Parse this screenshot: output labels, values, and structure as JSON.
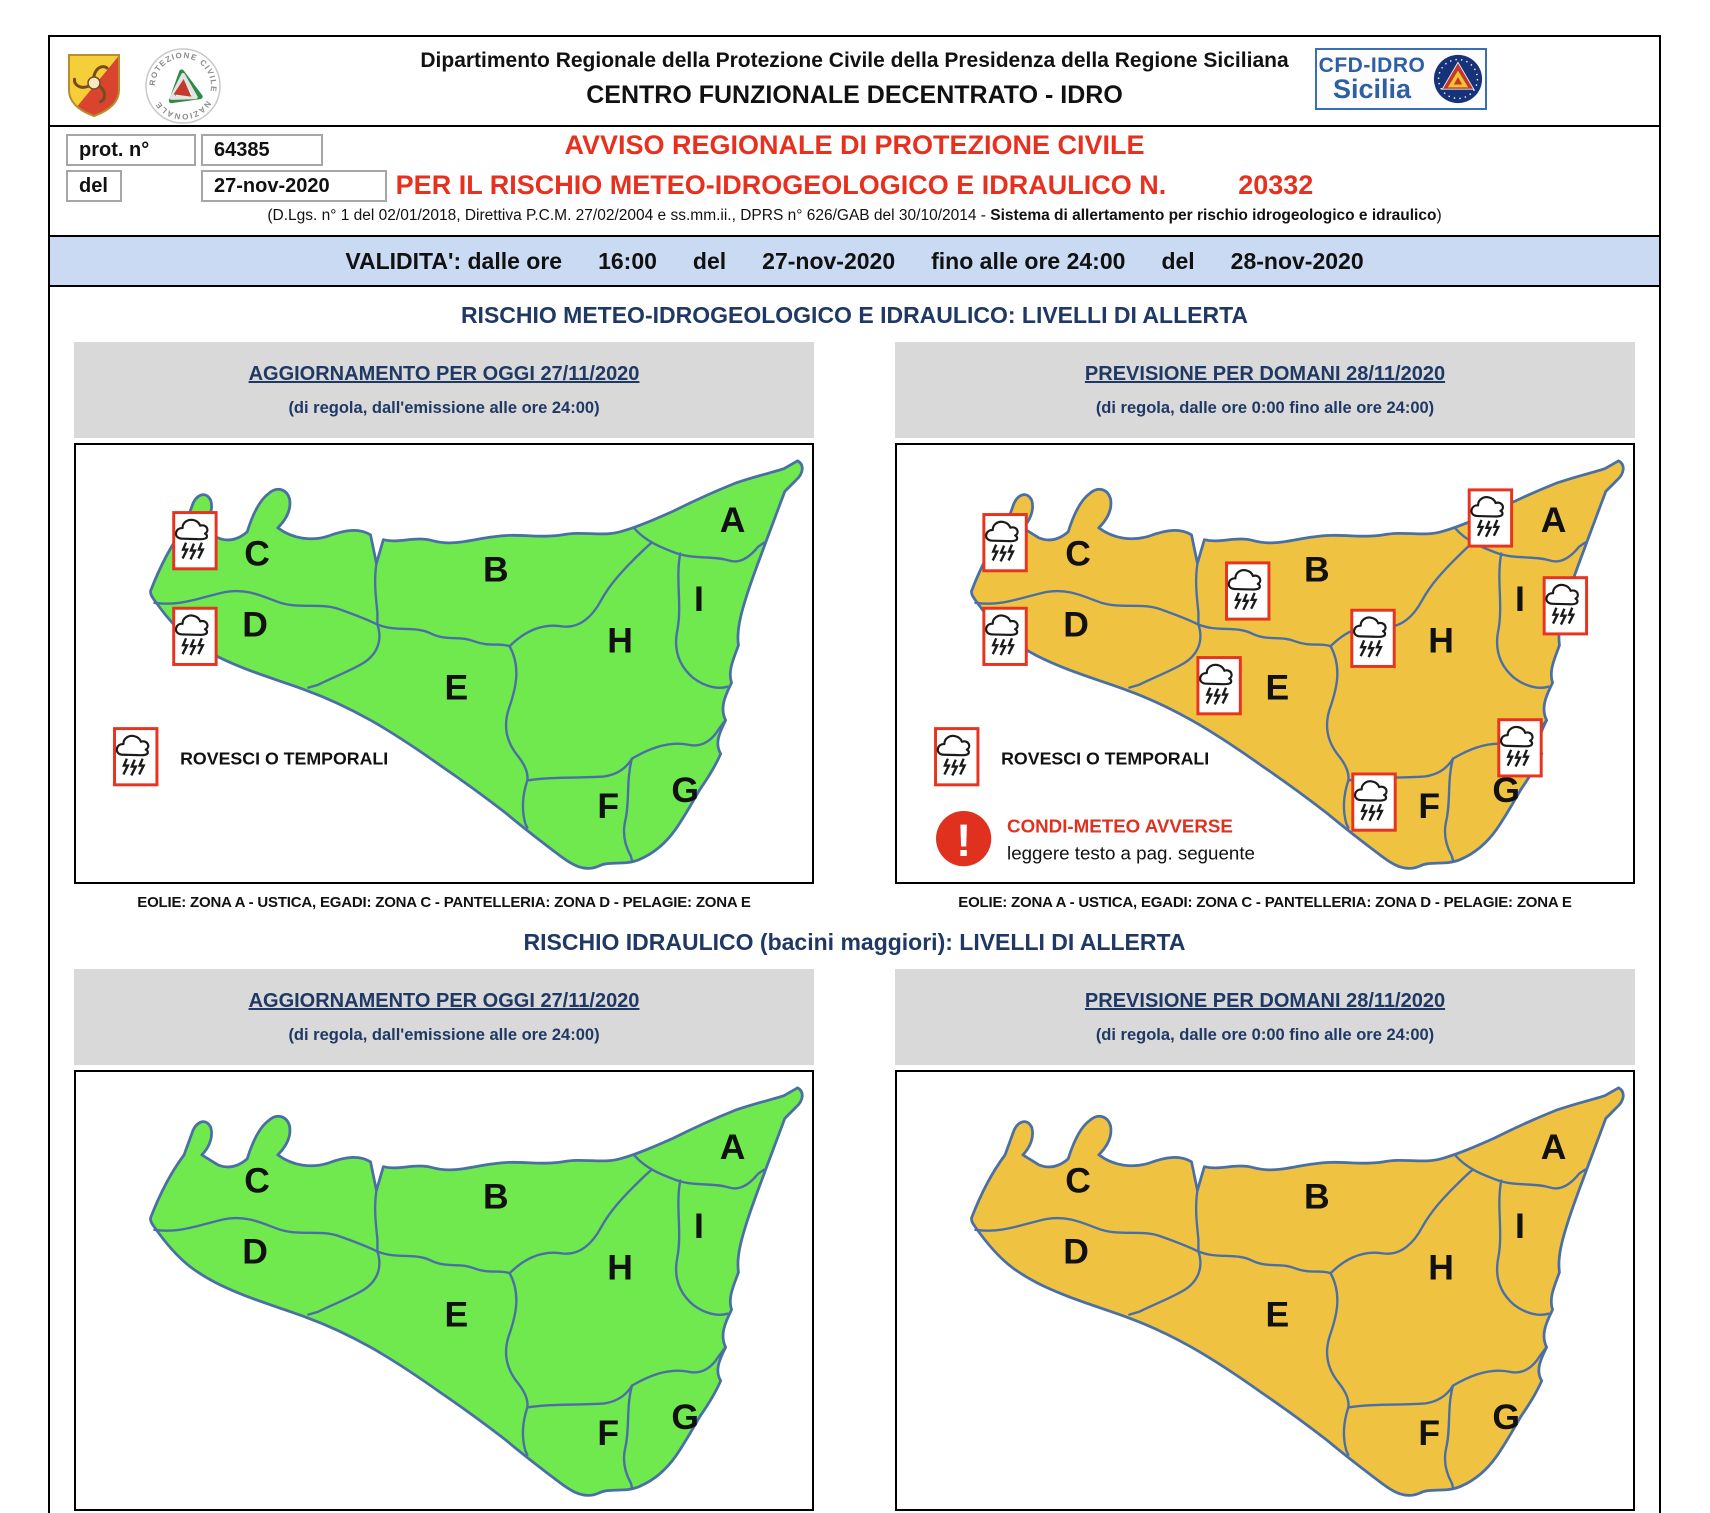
{
  "header": {
    "department_line": "Dipartimento Regionale della Protezione Civile della Presidenza della Regione Siciliana",
    "center_line": "CENTRO FUNZIONALE DECENTRATO - IDRO",
    "cfd_logo": {
      "line1": "CFD-IDRO",
      "line2": "Sicilia"
    },
    "pc_logo": {
      "arc_top": "PROTEZIONE CIVILE",
      "arc_bottom": "NAZIONALE"
    }
  },
  "protocol": {
    "label": "prot. n°",
    "number": "64385",
    "date_label": "del",
    "date": "27-nov-2020"
  },
  "title": {
    "line1": "AVVISO REGIONALE DI PROTEZIONE CIVILE",
    "line2": "PER IL RISCHIO METEO-IDROGEOLOGICO E IDRAULICO N.",
    "number": "20332"
  },
  "legal": {
    "prefix": "(D.Lgs. n° 1 del 02/01/2018, Direttiva P.C.M. 27/02/2004 e ss.mm.ii., DPRS n° 626/GAB del 30/10/2014 - ",
    "bold": "Sistema di allertamento per rischio idrogeologico e idraulico",
    "suffix": ")"
  },
  "validity": {
    "segments": [
      "VALIDITA': dalle ore",
      "16:00",
      "del",
      "27-nov-2020",
      "fino alle ore 24:00",
      "del",
      "28-nov-2020"
    ]
  },
  "map_common": {
    "zones": [
      "A",
      "B",
      "C",
      "D",
      "E",
      "F",
      "G",
      "H",
      "I"
    ],
    "legend_label": "ROVESCI O TEMPORALI",
    "condi_title": "CONDI-METEO AVVERSE",
    "condi_subtitle": "leggere testo a pag. seguente",
    "exclamation": "!",
    "island_caption": "EOLIE: ZONA A - USTICA, EGADI: ZONA C - PANTELLERIA: ZONA D - PELAGIE: ZONA E"
  },
  "sections": [
    {
      "title": "RISCHIO METEO-IDROGEOLOGICO E IDRAULICO: LIVELLI DI ALLERTA",
      "columns": [
        {
          "header": "AGGIORNAMENTO PER OGGI 27/11/2020",
          "subheader": "(di regola, dall'emissione alle ore 24:00)",
          "alert_color": "#6fe94d",
          "storm_zones": [
            "C",
            "D"
          ],
          "show_legend": true,
          "show_condi": false,
          "show_caption": true
        },
        {
          "header": "PREVISIONE PER DOMANI 28/11/2020",
          "subheader": "(di regola, dalle ore 0:00 fino alle ore 24:00)",
          "alert_color": "#f0c241",
          "storm_zones": [
            "C",
            "D",
            "B",
            "A",
            "I",
            "H",
            "E",
            "F",
            "G"
          ],
          "show_legend": true,
          "show_condi": true,
          "show_caption": true
        }
      ]
    },
    {
      "title": "RISCHIO IDRAULICO (bacini maggiori): LIVELLI DI ALLERTA",
      "columns": [
        {
          "header": "AGGIORNAMENTO PER OGGI 27/11/2020",
          "subheader": "(di regola, dall'emissione alle ore 24:00)",
          "alert_color": "#6fe94d",
          "storm_zones": [],
          "show_legend": false,
          "show_condi": false,
          "show_caption": false
        },
        {
          "header": "PREVISIONE PER DOMANI 28/11/2020",
          "subheader": "(di regola, dalle ore 0:00 fino alle ore 24:00)",
          "alert_color": "#f0c241",
          "storm_zones": [],
          "show_legend": false,
          "show_condi": false,
          "show_caption": false
        }
      ]
    }
  ],
  "colors": {
    "alert_green": "#6fe94d",
    "alert_orange": "#f0c241",
    "navy": "#1f3864",
    "title_red": "#e8301f",
    "condi_red": "#e0301e",
    "validity_blue": "#c9daf2",
    "bar_gray": "#d9d9d9",
    "map_border": "#4a6fa5"
  }
}
